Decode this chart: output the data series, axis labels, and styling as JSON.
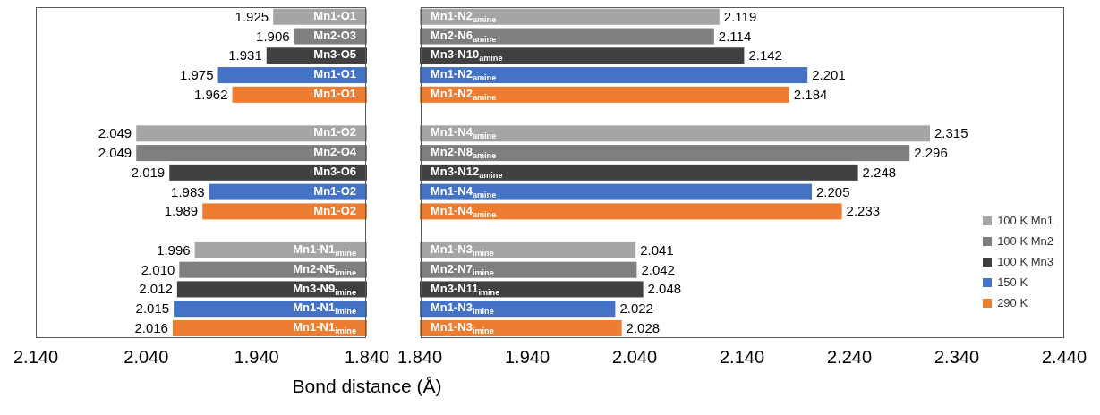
{
  "chart_data": [
    {
      "type": "bar",
      "orientation": "horizontal",
      "stacked": true,
      "xlabel": "Bond distance (Å)",
      "legend": false,
      "categories": [
        "Mn1-O1",
        "Mn2-O3",
        "Mn3-O5",
        "Mn1-O1",
        "Mn1-O1",
        null,
        "Mn1-O2",
        "Mn2-O4",
        "Mn3-O6",
        "Mn1-O2",
        "Mn1-O2",
        null,
        "Mn1-N1$_{imine}$",
        "Mn2-N5$_{imine}$",
        "Mn3-N9$_{imine}$",
        "Mn1-N1$_{imine}$",
        "Mn1-N1$_{imine}$"
      ],
      "xlim": [
        2.14,
        1.84
      ],
      "xticks": [
        {
          "value": 2.14,
          "label": "2.140"
        },
        {
          "value": 2.04,
          "label": "2.040"
        },
        {
          "value": 1.94,
          "label": "1.940"
        },
        {
          "value": 1.84,
          "label": "1.840"
        }
      ],
      "series": [
        {
          "color": "#a5a5a5",
          "values": [
            1.925,
            null,
            null,
            null,
            null,
            null,
            2.049,
            null,
            null,
            null,
            null,
            null,
            1.996,
            null,
            null,
            null,
            null
          ],
          "value_labels": [
            "1.925",
            null,
            null,
            null,
            null,
            null,
            "2.049",
            null,
            null,
            null,
            null,
            null,
            "1.996",
            null,
            null,
            null,
            null
          ]
        },
        {
          "color": "#7f7f7f",
          "values": [
            null,
            1.906,
            null,
            null,
            null,
            null,
            null,
            2.049,
            null,
            null,
            null,
            null,
            null,
            2.01,
            null,
            null,
            null
          ],
          "value_labels": [
            null,
            "1.906",
            null,
            null,
            null,
            null,
            null,
            "2.049",
            null,
            null,
            null,
            null,
            null,
            "2.010",
            null,
            null,
            null
          ]
        },
        {
          "color": "#404040",
          "values": [
            null,
            null,
            1.931,
            null,
            null,
            null,
            null,
            null,
            2.019,
            null,
            null,
            null,
            null,
            null,
            2.012,
            null,
            null
          ],
          "value_labels": [
            null,
            null,
            "1.931",
            null,
            null,
            null,
            null,
            null,
            "2.019",
            null,
            null,
            null,
            null,
            null,
            "2.012",
            null,
            null
          ]
        },
        {
          "color": "#4472c4",
          "values": [
            null,
            null,
            null,
            1.975,
            null,
            null,
            null,
            null,
            null,
            1.983,
            null,
            null,
            null,
            null,
            null,
            2.015,
            null
          ],
          "value_labels": [
            null,
            null,
            null,
            "1.975",
            null,
            null,
            null,
            null,
            null,
            "1.983",
            null,
            null,
            null,
            null,
            null,
            "2.015",
            null
          ]
        },
        {
          "color": "#ed7d31",
          "values": [
            null,
            null,
            null,
            null,
            1.962,
            null,
            null,
            null,
            null,
            null,
            1.989,
            null,
            null,
            null,
            null,
            null,
            2.016
          ],
          "value_labels": [
            null,
            null,
            null,
            null,
            "1.962",
            null,
            null,
            null,
            null,
            null,
            "1.989",
            null,
            null,
            null,
            null,
            null,
            "2.016"
          ]
        }
      ]
    },
    {
      "type": "bar",
      "orientation": "horizontal",
      "stacked": true,
      "legend": "bottom right",
      "categories": [
        "Mn1-N2$_{amine}$",
        "Mn2-N6$_{amine}$",
        "Mn3-N10$_{amine}$",
        "Mn1-N2$_{amine}$",
        "Mn1-N2$_{amine}$",
        null,
        "Mn1-N4$_{amine}$",
        "Mn2-N8$_{amine}$",
        "Mn3-N12$_{amine}$",
        "Mn1-N4$_{amine}$",
        "Mn1-N4$_{amine}$",
        null,
        "Mn1-N3$_{imine}$",
        "Mn2-N7$_{imine}$",
        "Mn3-N11$_{imine}$",
        "Mn1-N3$_{imine}$",
        "Mn1-N3$_{imine}$"
      ],
      "xlim": [
        1.84,
        2.44
      ],
      "xticks": [
        {
          "value": 1.84,
          "label": "1.840"
        },
        {
          "value": 1.94,
          "label": "1.940"
        },
        {
          "value": 2.04,
          "label": "2.040"
        },
        {
          "value": 2.14,
          "label": "2.140"
        },
        {
          "value": 2.24,
          "label": "2.240"
        },
        {
          "value": 2.34,
          "label": "2.340"
        },
        {
          "value": 2.44,
          "label": "2.440"
        }
      ],
      "series": [
        {
          "name": "100 K Mn1",
          "color": "#a5a5a5",
          "values": [
            2.119,
            null,
            null,
            null,
            null,
            null,
            2.315,
            null,
            null,
            null,
            null,
            null,
            2.041,
            null,
            null,
            null,
            null
          ],
          "value_labels": [
            "2.119",
            null,
            null,
            null,
            null,
            null,
            "2.315",
            null,
            null,
            null,
            null,
            null,
            "2.041",
            null,
            null,
            null,
            null
          ]
        },
        {
          "name": "100 K Mn2",
          "color": "#7f7f7f",
          "values": [
            null,
            2.114,
            null,
            null,
            null,
            null,
            null,
            2.296,
            null,
            null,
            null,
            null,
            null,
            2.042,
            null,
            null,
            null
          ],
          "value_labels": [
            null,
            "2.114",
            null,
            null,
            null,
            null,
            null,
            "2.296",
            null,
            null,
            null,
            null,
            null,
            "2.042",
            null,
            null,
            null
          ]
        },
        {
          "name": "100 K Mn3",
          "color": "#404040",
          "values": [
            null,
            null,
            2.142,
            null,
            null,
            null,
            null,
            null,
            2.248,
            null,
            null,
            null,
            null,
            null,
            2.048,
            null,
            null
          ],
          "value_labels": [
            null,
            null,
            "2.142",
            null,
            null,
            null,
            null,
            null,
            "2.248",
            null,
            null,
            null,
            null,
            null,
            "2.048",
            null,
            null
          ]
        },
        {
          "name": "150 K",
          "color": "#4472c4",
          "values": [
            null,
            null,
            null,
            2.201,
            null,
            null,
            null,
            null,
            null,
            2.205,
            null,
            null,
            null,
            null,
            null,
            2.022,
            null
          ],
          "value_labels": [
            null,
            null,
            null,
            "2.201",
            null,
            null,
            null,
            null,
            null,
            "2.205",
            null,
            null,
            null,
            null,
            null,
            "2.022",
            null
          ]
        },
        {
          "name": "290 K",
          "color": "#ed7d31",
          "values": [
            null,
            null,
            null,
            null,
            2.184,
            null,
            null,
            null,
            null,
            null,
            2.233,
            null,
            null,
            null,
            null,
            null,
            2.028
          ],
          "value_labels": [
            null,
            null,
            null,
            null,
            "2.184",
            null,
            null,
            null,
            null,
            null,
            "2.233",
            null,
            null,
            null,
            null,
            null,
            "2.028"
          ]
        }
      ]
    }
  ]
}
